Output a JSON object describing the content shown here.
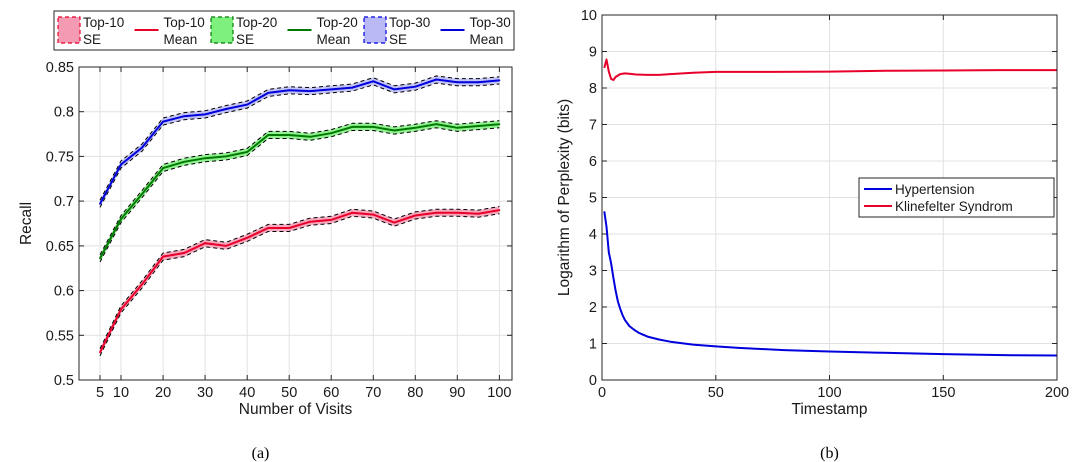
{
  "chart_data": [
    {
      "type": "line",
      "caption": "(a)",
      "xlabel": "Number of Visits",
      "ylabel": "Recall",
      "xlim": [
        0,
        103
      ],
      "ylim": [
        0.5,
        0.85
      ],
      "xticks": [
        5,
        10,
        20,
        30,
        40,
        50,
        60,
        70,
        80,
        90,
        100
      ],
      "xtick_labels": [
        "5",
        "10",
        "20",
        "30",
        "40",
        "50",
        "60",
        "70",
        "80",
        "90",
        "100"
      ],
      "yticks": [
        0.5,
        0.55,
        0.6,
        0.65,
        0.7,
        0.75,
        0.8,
        0.85
      ],
      "ytick_labels": [
        "0.5",
        "0.55",
        "0.6",
        "0.65",
        "0.7",
        "0.75",
        "0.8",
        "0.85"
      ],
      "grid": true,
      "legend_position": "top (outside, horizontal)",
      "x": [
        5,
        10,
        15,
        20,
        25,
        30,
        35,
        40,
        45,
        50,
        55,
        60,
        65,
        70,
        75,
        80,
        85,
        90,
        95,
        100
      ],
      "series": [
        {
          "name": "Top-10",
          "mean_label": "Top-10\nMean",
          "se_label": "Top-10\nSE",
          "color": "#e8002a",
          "fill_color": "#f59ab3",
          "values": [
            0.531,
            0.579,
            0.607,
            0.638,
            0.642,
            0.653,
            0.65,
            0.659,
            0.67,
            0.67,
            0.677,
            0.679,
            0.687,
            0.685,
            0.676,
            0.684,
            0.687,
            0.687,
            0.686,
            0.69
          ],
          "se": [
            0.004,
            0.004,
            0.004,
            0.004,
            0.004,
            0.004,
            0.004,
            0.004,
            0.004,
            0.004,
            0.004,
            0.004,
            0.004,
            0.004,
            0.004,
            0.004,
            0.004,
            0.004,
            0.004,
            0.004
          ]
        },
        {
          "name": "Top-20",
          "mean_label": "Top-20\nMean",
          "se_label": "Top-20\nSE",
          "color": "#007a00",
          "fill_color": "#7ef07e",
          "values": [
            0.636,
            0.68,
            0.708,
            0.737,
            0.744,
            0.748,
            0.75,
            0.755,
            0.774,
            0.774,
            0.772,
            0.776,
            0.783,
            0.783,
            0.779,
            0.782,
            0.786,
            0.782,
            0.784,
            0.786
          ],
          "se": [
            0.004,
            0.004,
            0.004,
            0.004,
            0.004,
            0.004,
            0.004,
            0.004,
            0.004,
            0.004,
            0.004,
            0.004,
            0.004,
            0.004,
            0.004,
            0.004,
            0.004,
            0.004,
            0.004,
            0.004
          ]
        },
        {
          "name": "Top-30",
          "mean_label": "Top-30\nMean",
          "se_label": "Top-30\nSE",
          "color": "#0000dd",
          "fill_color": "#b9b9f5",
          "values": [
            0.697,
            0.741,
            0.76,
            0.789,
            0.795,
            0.797,
            0.803,
            0.808,
            0.821,
            0.824,
            0.823,
            0.825,
            0.827,
            0.834,
            0.825,
            0.828,
            0.836,
            0.833,
            0.833,
            0.835
          ],
          "se": [
            0.004,
            0.004,
            0.004,
            0.004,
            0.004,
            0.004,
            0.004,
            0.004,
            0.004,
            0.004,
            0.004,
            0.004,
            0.004,
            0.004,
            0.004,
            0.004,
            0.004,
            0.004,
            0.004,
            0.004
          ]
        }
      ]
    },
    {
      "type": "line",
      "caption": "(b)",
      "xlabel": "Timestamp",
      "ylabel": "Logarithm of Perplexity (bits)",
      "xlim": [
        0,
        200
      ],
      "ylim": [
        0,
        10
      ],
      "xticks": [
        0,
        50,
        100,
        150,
        200
      ],
      "xtick_labels": [
        "0",
        "50",
        "100",
        "150",
        "200"
      ],
      "yticks": [
        0,
        1,
        2,
        3,
        4,
        5,
        6,
        7,
        8,
        9,
        10
      ],
      "ytick_labels": [
        "0",
        "1",
        "2",
        "3",
        "4",
        "5",
        "6",
        "7",
        "8",
        "9",
        "10"
      ],
      "grid": true,
      "legend_position": "right, middle",
      "series": [
        {
          "name": "Hypertension",
          "color": "#0000dd",
          "x": [
            1,
            2,
            3,
            4,
            5,
            6,
            7,
            8,
            9,
            10,
            12,
            14,
            16,
            18,
            20,
            25,
            30,
            40,
            50,
            60,
            80,
            100,
            120,
            150,
            180,
            200
          ],
          "values": [
            4.62,
            4.2,
            3.5,
            3.2,
            2.8,
            2.45,
            2.15,
            1.95,
            1.78,
            1.65,
            1.48,
            1.38,
            1.3,
            1.24,
            1.19,
            1.11,
            1.05,
            0.97,
            0.92,
            0.88,
            0.82,
            0.78,
            0.75,
            0.71,
            0.68,
            0.67
          ]
        },
        {
          "name": "Klinefelter Syndrom",
          "color": "#e8002a",
          "x": [
            1,
            2,
            3,
            4,
            5,
            6,
            8,
            10,
            12,
            15,
            20,
            25,
            30,
            40,
            50,
            75,
            100,
            125,
            150,
            175,
            200
          ],
          "values": [
            8.55,
            8.78,
            8.45,
            8.25,
            8.22,
            8.3,
            8.38,
            8.4,
            8.39,
            8.37,
            8.36,
            8.36,
            8.38,
            8.42,
            8.44,
            8.44,
            8.45,
            8.47,
            8.48,
            8.49,
            8.49
          ]
        }
      ]
    }
  ]
}
